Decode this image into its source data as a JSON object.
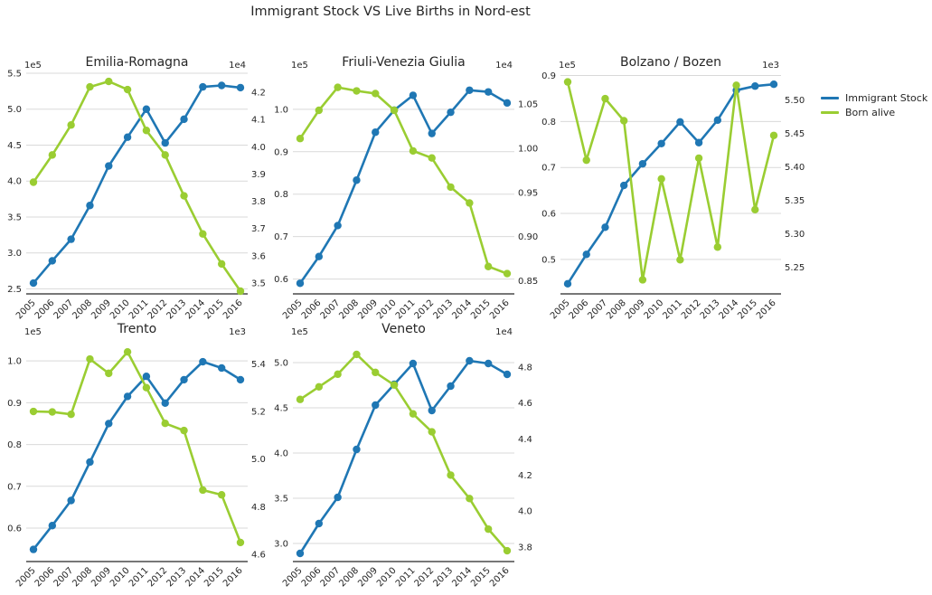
{
  "figure": {
    "suptitle": "Immigrant Stock VS Live Births in Nord-est"
  },
  "colors": {
    "stock": "#1f77b4",
    "births": "#9acd32",
    "grid": "#d9d9d9",
    "axis": "#262626"
  },
  "legend": {
    "placement": "right",
    "items": [
      {
        "label": "Immigrant Stock",
        "color": "#1f77b4"
      },
      {
        "label": "Born alive",
        "color": "#9acd32"
      }
    ]
  },
  "chart_data": [
    {
      "type": "line",
      "title": "Emilia-Romagna",
      "x": [
        "2005",
        "2006",
        "2007",
        "2008",
        "2009",
        "2010",
        "2011",
        "2012",
        "2013",
        "2014",
        "2015",
        "2016"
      ],
      "left_axis": {
        "multiplier": "1e5",
        "ticks": [
          "2.5",
          "3.0",
          "3.5",
          "4.0",
          "4.5",
          "5.0",
          "5.5"
        ],
        "tick_values": [
          2.5,
          3.0,
          3.5,
          4.0,
          4.5,
          5.0,
          5.5
        ],
        "ylim": [
          2.43,
          5.5
        ]
      },
      "right_axis": {
        "multiplier": "1e4",
        "ticks": [
          "3.5",
          "3.6",
          "3.7",
          "3.8",
          "3.9",
          "4.0",
          "4.1",
          "4.2"
        ],
        "tick_values": [
          3.5,
          3.6,
          3.7,
          3.8,
          3.9,
          4.0,
          4.1,
          4.2
        ],
        "ylim": [
          3.46,
          4.27
        ]
      },
      "series": [
        {
          "name": "Immigrant Stock",
          "axis": "left",
          "values": [
            2.58,
            2.89,
            3.19,
            3.66,
            4.21,
            4.61,
            5.0,
            4.53,
            4.86,
            5.31,
            5.33,
            5.3
          ]
        },
        {
          "name": "Born alive",
          "axis": "right",
          "values": [
            3.87,
            3.97,
            4.08,
            4.22,
            4.24,
            4.21,
            4.06,
            3.97,
            3.82,
            3.68,
            3.57,
            3.47
          ]
        }
      ]
    },
    {
      "type": "line",
      "title": "Friuli-Venezia Giulia",
      "x": [
        "2005",
        "2006",
        "2007",
        "2008",
        "2009",
        "2010",
        "2011",
        "2012",
        "2013",
        "2014",
        "2015",
        "2016"
      ],
      "left_axis": {
        "multiplier": "1e5",
        "ticks": [
          "0.6",
          "0.7",
          "0.8",
          "0.9",
          "1.0"
        ],
        "tick_values": [
          0.6,
          0.7,
          0.8,
          0.9,
          1.0
        ],
        "ylim": [
          0.565,
          1.085
        ]
      },
      "right_axis": {
        "multiplier": "1e4",
        "ticks": [
          "0.85",
          "0.90",
          "0.95",
          "1.00",
          "1.05"
        ],
        "tick_values": [
          0.85,
          0.9,
          0.95,
          1.0,
          1.05
        ],
        "ylim": [
          0.835,
          1.085
        ]
      },
      "series": [
        {
          "name": "Immigrant Stock",
          "axis": "left",
          "values": [
            0.59,
            0.653,
            0.726,
            0.833,
            0.946,
            0.998,
            1.033,
            0.943,
            0.993,
            1.045,
            1.041,
            1.015
          ]
        },
        {
          "name": "Born alive",
          "axis": "right",
          "values": [
            1.011,
            1.043,
            1.069,
            1.065,
            1.062,
            1.043,
            0.997,
            0.989,
            0.956,
            0.938,
            0.866,
            0.858
          ]
        }
      ]
    },
    {
      "type": "line",
      "title": "Bolzano / Bozen",
      "x": [
        "2005",
        "2006",
        "2007",
        "2008",
        "2009",
        "2010",
        "2011",
        "2012",
        "2013",
        "2014",
        "2015",
        "2016"
      ],
      "left_axis": {
        "multiplier": "1e5",
        "ticks": [
          "0.5",
          "0.6",
          "0.7",
          "0.8",
          "0.9"
        ],
        "tick_values": [
          0.5,
          0.6,
          0.7,
          0.8,
          0.9
        ],
        "ylim": [
          0.425,
          0.905
        ]
      },
      "right_axis": {
        "multiplier": "1e3",
        "ticks": [
          "5.25",
          "5.30",
          "5.35",
          "5.40",
          "5.45",
          "5.50"
        ],
        "tick_values": [
          5.25,
          5.3,
          5.35,
          5.4,
          5.45,
          5.5
        ],
        "ylim": [
          5.21,
          5.54
        ]
      },
      "series": [
        {
          "name": "Immigrant Stock",
          "axis": "left",
          "values": [
            0.447,
            0.511,
            0.57,
            0.661,
            0.708,
            0.752,
            0.799,
            0.754,
            0.803,
            0.868,
            0.877,
            0.881
          ]
        },
        {
          "name": "Born alive",
          "axis": "right",
          "values": [
            5.527,
            5.41,
            5.502,
            5.469,
            5.231,
            5.382,
            5.261,
            5.413,
            5.28,
            5.522,
            5.336,
            5.447
          ]
        }
      ]
    },
    {
      "type": "line",
      "title": "Trento",
      "x": [
        "2005",
        "2006",
        "2007",
        "2008",
        "2009",
        "2010",
        "2011",
        "2012",
        "2013",
        "2014",
        "2015",
        "2016"
      ],
      "left_axis": {
        "multiplier": "1e5",
        "ticks": [
          "0.6",
          "0.7",
          "0.8",
          "0.9",
          "1.0"
        ],
        "tick_values": [
          0.6,
          0.7,
          0.8,
          0.9,
          1.0
        ],
        "ylim": [
          0.52,
          1.05
        ]
      },
      "right_axis": {
        "multiplier": "1e3",
        "ticks": [
          "4.6",
          "4.8",
          "5.0",
          "5.2",
          "5.4"
        ],
        "tick_values": [
          4.6,
          4.8,
          5.0,
          5.2,
          5.4
        ],
        "ylim": [
          4.57,
          5.5
        ]
      },
      "series": [
        {
          "name": "Immigrant Stock",
          "axis": "left",
          "values": [
            0.549,
            0.606,
            0.666,
            0.758,
            0.85,
            0.915,
            0.963,
            0.899,
            0.955,
            0.998,
            0.983,
            0.955
          ]
        },
        {
          "name": "Born alive",
          "axis": "right",
          "values": [
            5.2,
            5.198,
            5.188,
            5.42,
            5.36,
            5.45,
            5.3,
            5.15,
            5.12,
            4.87,
            4.85,
            4.65
          ]
        }
      ]
    },
    {
      "type": "line",
      "title": "Veneto",
      "x": [
        "2005",
        "2006",
        "2007",
        "2008",
        "2009",
        "2010",
        "2011",
        "2012",
        "2013",
        "2014",
        "2015",
        "2016"
      ],
      "left_axis": {
        "multiplier": "1e5",
        "ticks": [
          "3.0",
          "3.5",
          "4.0",
          "4.5",
          "5.0"
        ],
        "tick_values": [
          3.0,
          3.5,
          4.0,
          4.5,
          5.0
        ],
        "ylim": [
          2.8,
          5.25
        ]
      },
      "right_axis": {
        "multiplier": "1e4",
        "ticks": [
          "3.8",
          "4.0",
          "4.2",
          "4.4",
          "4.6",
          "4.8"
        ],
        "tick_values": [
          3.8,
          4.0,
          4.2,
          4.4,
          4.6,
          4.8
        ],
        "ylim": [
          3.72,
          4.95
        ]
      },
      "series": [
        {
          "name": "Immigrant Stock",
          "axis": "left",
          "values": [
            2.89,
            3.22,
            3.51,
            4.04,
            4.53,
            4.76,
            4.99,
            4.47,
            4.74,
            5.02,
            4.99,
            4.87
          ]
        },
        {
          "name": "Born alive",
          "axis": "right",
          "values": [
            4.62,
            4.69,
            4.76,
            4.87,
            4.77,
            4.7,
            4.54,
            4.44,
            4.2,
            4.07,
            3.9,
            3.78
          ]
        }
      ]
    }
  ]
}
